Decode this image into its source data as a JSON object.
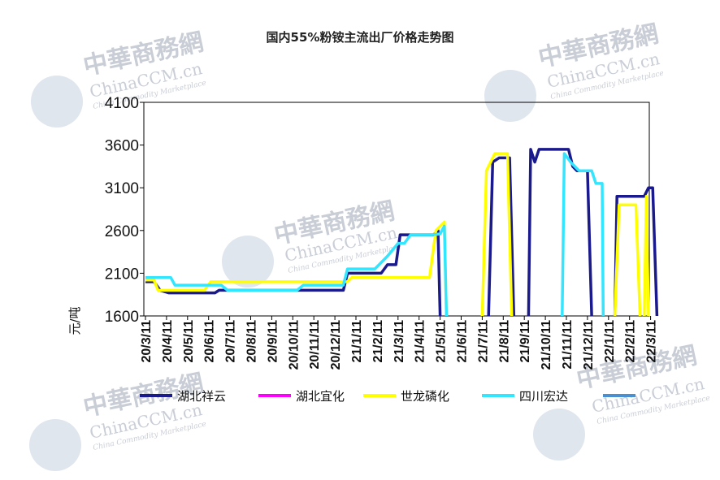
{
  "watermark": {
    "cn": "中華商務網",
    "en": "ChinaCCM.cn",
    "sub": "China Commodity Marketplace"
  },
  "chart_data": {
    "type": "line",
    "title": "国内55%粉铵主流出厂价格走势图",
    "ylabel": "元/吨",
    "xlabel": "",
    "ylim": [
      1600,
      4100
    ],
    "yticks": [
      1600,
      2100,
      2600,
      3100,
      3600,
      4100
    ],
    "x_tick_labels": [
      "20/3/11",
      "20/4/11",
      "20/5/11",
      "20/6/11",
      "20/7/11",
      "20/8/11",
      "20/9/11",
      "20/10/11",
      "20/11/11",
      "20/12/11",
      "21/1/11",
      "21/2/11",
      "21/3/11",
      "21/4/11",
      "21/5/11",
      "21/6/11",
      "21/7/11",
      "21/8/11",
      "21/9/11",
      "21/10/11",
      "21/11/11",
      "21/12/11",
      "22/1/11",
      "22/2/11",
      "22/3/11"
    ],
    "x_unit": "month index from 20/3/11",
    "grid": false,
    "legend_position": "bottom",
    "series": [
      {
        "name": "湖北祥云",
        "color": "#1a1a8c",
        "segments": [
          [
            [
              0.0,
              2000
            ],
            [
              0.4,
              2000
            ],
            [
              0.7,
              1900
            ],
            [
              1.1,
              1870
            ],
            [
              3.3,
              1870
            ],
            [
              3.5,
              1900
            ],
            [
              6.8,
              1900
            ],
            [
              7.4,
              1900
            ],
            [
              9.4,
              1900
            ],
            [
              9.6,
              2100
            ],
            [
              11.2,
              2100
            ],
            [
              11.5,
              2200
            ],
            [
              11.9,
              2200
            ],
            [
              12.1,
              2550
            ],
            [
              13.7,
              2550
            ],
            [
              13.9,
              2600
            ],
            [
              14.0,
              1600
            ]
          ],
          [
            [
              16.3,
              1600
            ],
            [
              16.5,
              3400
            ],
            [
              16.8,
              3450
            ],
            [
              17.3,
              3450
            ],
            [
              17.5,
              1600
            ]
          ],
          [
            [
              18.2,
              1600
            ],
            [
              18.3,
              3550
            ],
            [
              18.5,
              3400
            ],
            [
              18.7,
              3550
            ],
            [
              20.1,
              3550
            ],
            [
              20.3,
              3350
            ],
            [
              20.5,
              3300
            ],
            [
              21.0,
              3300
            ],
            [
              21.2,
              1600
            ]
          ],
          [
            [
              22.3,
              1600
            ],
            [
              22.4,
              3000
            ],
            [
              23.7,
              3000
            ],
            [
              23.9,
              3100
            ],
            [
              24.1,
              3100
            ],
            [
              24.3,
              1600
            ]
          ]
        ]
      },
      {
        "name": "湖北宜化",
        "color": "#ff00ff",
        "segments": []
      },
      {
        "name": "世龙磷化",
        "color": "#ffff00",
        "segments": [
          [
            [
              0.0,
              2020
            ],
            [
              0.4,
              2020
            ],
            [
              0.6,
              1900
            ],
            [
              2.8,
              1900
            ],
            [
              3.1,
              2000
            ],
            [
              9.6,
              2000
            ],
            [
              9.8,
              2050
            ],
            [
              13.5,
              2050
            ],
            [
              13.8,
              2600
            ],
            [
              14.2,
              2700
            ],
            [
              14.3,
              1600
            ]
          ],
          [
            [
              16.0,
              1600
            ],
            [
              16.2,
              3300
            ],
            [
              16.6,
              3500
            ],
            [
              17.2,
              3500
            ],
            [
              17.4,
              1600
            ]
          ],
          [
            [
              22.3,
              1600
            ],
            [
              22.5,
              2900
            ],
            [
              23.3,
              2900
            ],
            [
              23.5,
              1600
            ]
          ],
          [
            [
              23.7,
              1600
            ],
            [
              23.8,
              3000
            ],
            [
              23.9,
              1600
            ]
          ]
        ]
      },
      {
        "name": "四川宏达",
        "color": "#33e6ff",
        "segments": [
          [
            [
              0.0,
              2050
            ],
            [
              1.2,
              2050
            ],
            [
              1.4,
              1960
            ],
            [
              3.6,
              1960
            ],
            [
              3.9,
              1900
            ],
            [
              7.2,
              1900
            ],
            [
              7.5,
              1960
            ],
            [
              9.4,
              1960
            ],
            [
              9.6,
              2150
            ],
            [
              10.9,
              2150
            ],
            [
              11.1,
              2200
            ],
            [
              11.5,
              2300
            ],
            [
              12.0,
              2450
            ],
            [
              12.3,
              2450
            ],
            [
              12.6,
              2550
            ],
            [
              13.6,
              2550
            ],
            [
              14.0,
              2560
            ],
            [
              14.2,
              2650
            ],
            [
              14.3,
              1600
            ]
          ],
          [
            [
              19.8,
              1600
            ],
            [
              19.9,
              3500
            ],
            [
              20.2,
              3400
            ],
            [
              20.6,
              3300
            ],
            [
              21.2,
              3300
            ],
            [
              21.4,
              3150
            ],
            [
              21.7,
              3150
            ],
            [
              21.75,
              1600
            ]
          ]
        ]
      },
      {
        "name": "",
        "color": "#4a8fd0",
        "segments": []
      }
    ]
  }
}
